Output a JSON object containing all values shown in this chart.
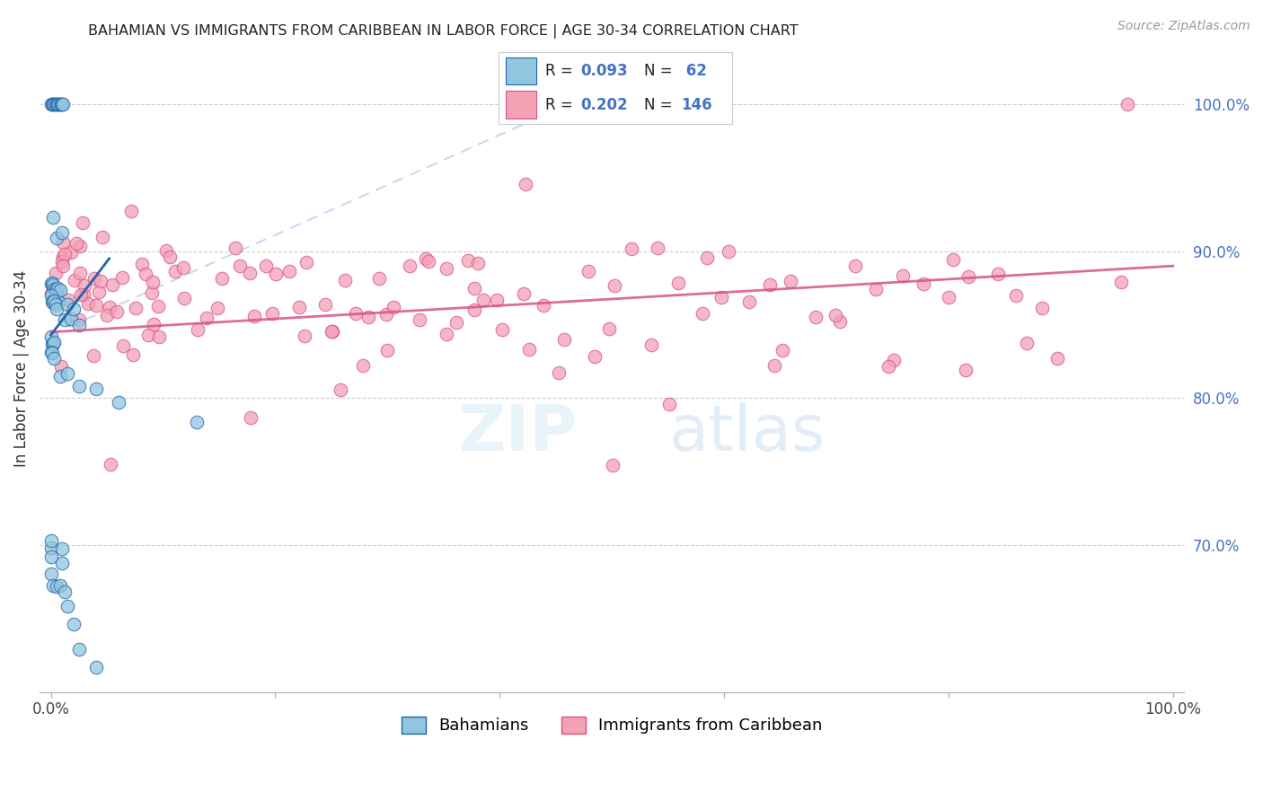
{
  "title": "BAHAMIAN VS IMMIGRANTS FROM CARIBBEAN IN LABOR FORCE | AGE 30-34 CORRELATION CHART",
  "source": "Source: ZipAtlas.com",
  "ylabel": "In Labor Force | Age 30-34",
  "xlim": [
    0.0,
    1.0
  ],
  "ylim": [
    0.6,
    1.04
  ],
  "ytick_vals": [
    0.7,
    0.8,
    0.9,
    1.0
  ],
  "ytick_labels": [
    "70.0%",
    "80.0%",
    "90.0%",
    "100.0%"
  ],
  "xtick_vals": [
    0.0,
    0.2,
    0.4,
    0.6,
    0.8,
    1.0
  ],
  "xtick_labels": [
    "0.0%",
    "",
    "",
    "",
    "",
    "100.0%"
  ],
  "color_blue": "#92c5de",
  "color_pink": "#f4a0b5",
  "color_blue_dark": "#2166ac",
  "color_pink_dark": "#d6538a",
  "color_grid": "#bbbbbb",
  "color_rtick": "#4472c4",
  "watermark_zip": "ZIP",
  "watermark_atlas": "atlas",
  "background_color": "#ffffff",
  "blue_intercept": 0.843,
  "blue_slope": 1.1,
  "pink_intercept": 0.845,
  "pink_slope": 0.045,
  "blue_x": [
    0.0,
    0.001,
    0.002,
    0.003,
    0.004,
    0.005,
    0.006,
    0.007,
    0.008,
    0.009,
    0.01,
    0.011,
    0.002,
    0.005,
    0.01,
    0.0,
    0.001,
    0.002,
    0.003,
    0.004,
    0.005,
    0.006,
    0.007,
    0.008,
    0.0,
    0.001,
    0.002,
    0.003,
    0.004,
    0.005,
    0.012,
    0.015,
    0.018,
    0.02,
    0.025,
    0.0,
    0.001,
    0.002,
    0.003,
    0.0,
    0.001,
    0.003,
    0.008,
    0.015,
    0.025,
    0.04,
    0.06,
    0.13,
    0.0,
    0.0,
    0.0,
    0.01,
    0.01,
    0.0,
    0.002,
    0.005,
    0.008,
    0.012,
    0.015,
    0.02,
    0.025,
    0.04
  ],
  "blue_y": [
    1.0,
    1.0,
    1.0,
    1.0,
    1.0,
    1.0,
    1.0,
    1.0,
    1.0,
    1.0,
    1.0,
    1.0,
    0.92,
    0.91,
    0.905,
    0.875,
    0.875,
    0.875,
    0.875,
    0.875,
    0.875,
    0.875,
    0.875,
    0.875,
    0.87,
    0.87,
    0.868,
    0.865,
    0.862,
    0.86,
    0.86,
    0.858,
    0.855,
    0.852,
    0.85,
    0.84,
    0.838,
    0.835,
    0.833,
    0.83,
    0.828,
    0.825,
    0.82,
    0.815,
    0.81,
    0.805,
    0.8,
    0.78,
    0.7,
    0.697,
    0.693,
    0.695,
    0.692,
    0.68,
    0.675,
    0.67,
    0.668,
    0.665,
    0.66,
    0.65,
    0.63,
    0.62
  ],
  "pink_x": [
    0.0,
    0.002,
    0.004,
    0.006,
    0.008,
    0.01,
    0.012,
    0.015,
    0.018,
    0.02,
    0.022,
    0.025,
    0.028,
    0.03,
    0.032,
    0.035,
    0.038,
    0.04,
    0.042,
    0.045,
    0.048,
    0.05,
    0.055,
    0.06,
    0.065,
    0.07,
    0.075,
    0.08,
    0.085,
    0.09,
    0.095,
    0.1,
    0.105,
    0.11,
    0.115,
    0.12,
    0.13,
    0.14,
    0.15,
    0.16,
    0.17,
    0.18,
    0.19,
    0.2,
    0.21,
    0.22,
    0.23,
    0.24,
    0.25,
    0.26,
    0.27,
    0.28,
    0.29,
    0.3,
    0.31,
    0.32,
    0.33,
    0.34,
    0.35,
    0.36,
    0.37,
    0.38,
    0.39,
    0.4,
    0.42,
    0.44,
    0.46,
    0.48,
    0.5,
    0.52,
    0.54,
    0.56,
    0.58,
    0.6,
    0.62,
    0.64,
    0.66,
    0.68,
    0.7,
    0.72,
    0.74,
    0.76,
    0.78,
    0.8,
    0.82,
    0.84,
    0.86,
    0.88,
    0.96,
    0.01,
    0.02,
    0.03,
    0.04,
    0.05,
    0.06,
    0.07,
    0.08,
    0.09,
    0.1,
    0.12,
    0.15,
    0.18,
    0.2,
    0.23,
    0.25,
    0.28,
    0.3,
    0.33,
    0.35,
    0.38,
    0.4,
    0.43,
    0.45,
    0.48,
    0.5,
    0.53,
    0.55,
    0.58,
    0.6,
    0.65,
    0.7,
    0.75,
    0.8,
    0.42,
    0.38,
    0.26,
    0.18,
    0.5,
    0.64,
    0.75,
    0.82,
    0.87,
    0.9,
    0.95,
    0.01,
    0.025,
    0.05
  ],
  "pink_y": [
    0.87,
    0.875,
    0.868,
    0.865,
    0.872,
    0.88,
    0.875,
    0.872,
    0.878,
    0.882,
    0.875,
    0.885,
    0.878,
    0.882,
    0.875,
    0.88,
    0.885,
    0.878,
    0.882,
    0.875,
    0.88,
    0.872,
    0.878,
    0.882,
    0.875,
    0.88,
    0.872,
    0.878,
    0.882,
    0.875,
    0.88,
    0.872,
    0.878,
    0.882,
    0.875,
    0.88,
    0.878,
    0.875,
    0.872,
    0.878,
    0.882,
    0.875,
    0.88,
    0.872,
    0.878,
    0.882,
    0.875,
    0.88,
    0.872,
    0.878,
    0.882,
    0.875,
    0.88,
    0.872,
    0.878,
    0.882,
    0.875,
    0.88,
    0.872,
    0.878,
    0.882,
    0.875,
    0.88,
    0.872,
    0.878,
    0.882,
    0.875,
    0.88,
    0.872,
    0.878,
    0.882,
    0.875,
    0.88,
    0.872,
    0.878,
    0.882,
    0.875,
    0.88,
    0.872,
    0.878,
    0.882,
    0.875,
    0.88,
    0.872,
    0.878,
    0.882,
    0.875,
    0.88,
    1.0,
    0.85,
    0.848,
    0.852,
    0.845,
    0.848,
    0.852,
    0.845,
    0.848,
    0.852,
    0.845,
    0.848,
    0.84,
    0.845,
    0.848,
    0.84,
    0.845,
    0.848,
    0.84,
    0.845,
    0.848,
    0.84,
    0.845,
    0.848,
    0.84,
    0.845,
    0.848,
    0.84,
    0.845,
    0.848,
    0.84,
    0.845,
    0.848,
    0.84,
    0.845,
    0.96,
    0.895,
    0.78,
    0.77,
    0.76,
    0.8,
    0.81,
    0.8,
    0.81,
    0.798,
    0.895,
    0.905,
    0.91,
    0.755
  ]
}
